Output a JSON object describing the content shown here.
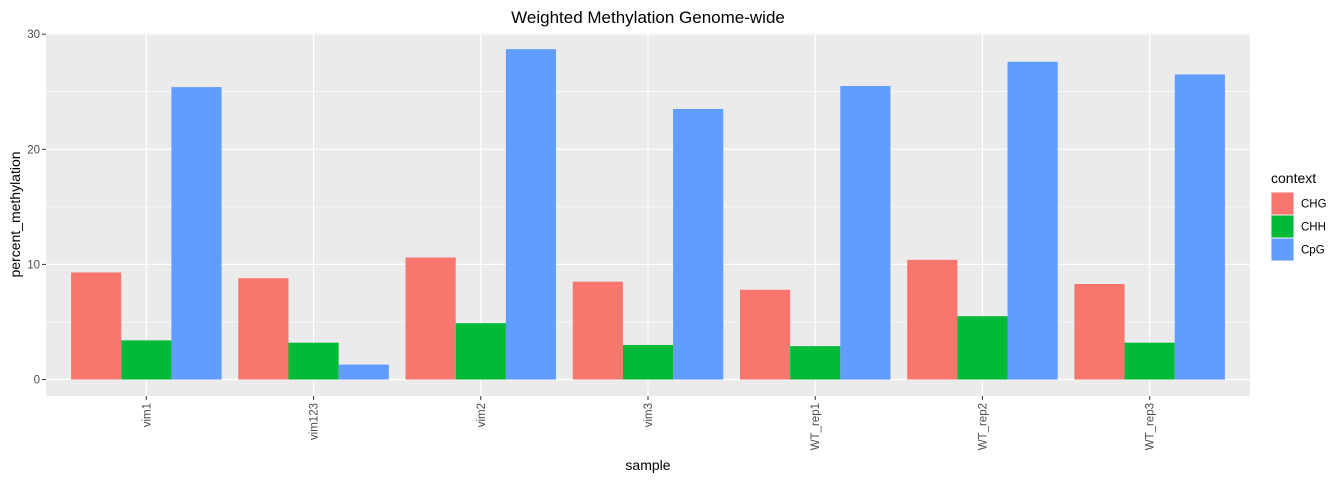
{
  "chart_data": {
    "type": "bar",
    "title": "Weighted Methylation Genome-wide",
    "xlabel": "sample",
    "ylabel": "percent_methylation",
    "categories": [
      "vim1",
      "vim123",
      "vim2",
      "vim3",
      "WT_rep1",
      "WT_rep2",
      "WT_rep3"
    ],
    "series": [
      {
        "name": "CHG",
        "color": "#F8766D",
        "values": [
          9.3,
          8.8,
          10.6,
          8.5,
          7.8,
          10.4,
          8.3
        ]
      },
      {
        "name": "CHH",
        "color": "#00BA38",
        "values": [
          3.4,
          3.2,
          4.9,
          3.0,
          2.9,
          5.5,
          3.2
        ]
      },
      {
        "name": "CpG",
        "color": "#619CFF",
        "values": [
          25.4,
          1.3,
          28.7,
          23.5,
          25.5,
          27.6,
          26.5
        ]
      }
    ],
    "ylim": [
      -1.43,
      30.1
    ],
    "yticks": [
      0,
      10,
      20,
      30
    ],
    "grid": true,
    "legend": {
      "title": "context",
      "placement": "right"
    },
    "panel_background": "#EBEBEB",
    "gridline_color": "#FFFFFF"
  }
}
